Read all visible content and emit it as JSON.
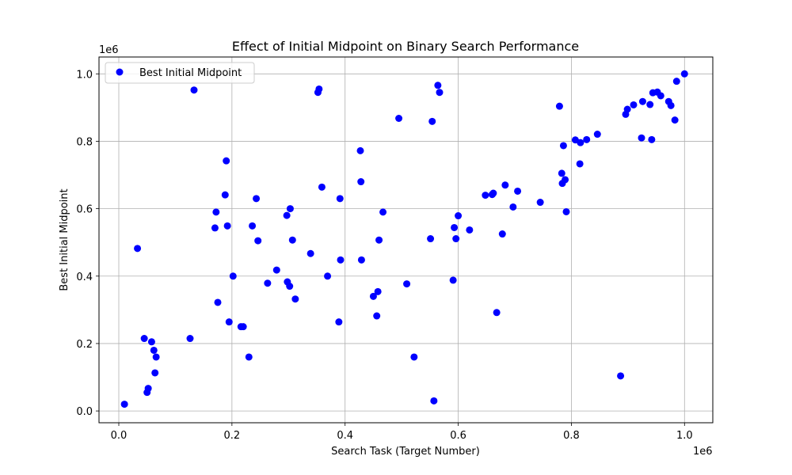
{
  "chart_data": {
    "type": "scatter",
    "title": "Effect of Initial Midpoint on Binary Search Performance",
    "xlabel": "Search Task (Target Number)",
    "ylabel": "Best Initial Midpoint",
    "x_scale_label": "1e6",
    "y_scale_label": "1e6",
    "xlim": [
      -35000,
      1050000
    ],
    "ylim": [
      -35000,
      1050000
    ],
    "x_ticks": [
      0,
      200000,
      400000,
      600000,
      800000,
      1000000
    ],
    "x_tick_labels": [
      "0.0",
      "0.2",
      "0.4",
      "0.6",
      "0.8",
      "1.0"
    ],
    "y_ticks": [
      0,
      200000,
      400000,
      600000,
      800000,
      1000000
    ],
    "y_tick_labels": [
      "0.0",
      "0.2",
      "0.4",
      "0.6",
      "0.8",
      "1.0"
    ],
    "grid": true,
    "legend_position": "top-left",
    "color": "#0000ff",
    "series": [
      {
        "name": "Best Initial Midpoint",
        "x": [
          10000,
          33000,
          45000,
          50000,
          52000,
          58000,
          62000,
          64000,
          66000,
          126000,
          133000,
          170000,
          172000,
          175000,
          188000,
          190000,
          192000,
          195000,
          202000,
          216000,
          220000,
          230000,
          236000,
          243000,
          246000,
          263000,
          279000,
          297000,
          298000,
          302000,
          303000,
          307000,
          312000,
          339000,
          352000,
          354000,
          359000,
          369000,
          389000,
          391000,
          392000,
          427000,
          428000,
          429000,
          450000,
          456000,
          458000,
          460000,
          467000,
          495000,
          509000,
          522000,
          551000,
          554000,
          557000,
          564000,
          567000,
          591000,
          593000,
          596000,
          600000,
          620000,
          648000,
          660000,
          662000,
          668000,
          678000,
          683000,
          697000,
          705000,
          745000,
          779000,
          783000,
          784000,
          786000,
          789000,
          791000,
          807000,
          815000,
          816000,
          827000,
          846000,
          887000,
          896000,
          899000,
          910000,
          924000,
          926000,
          939000,
          942000,
          944000,
          952000,
          958000,
          972000,
          976000,
          983000,
          986000,
          1000000
        ],
        "y": [
          20000,
          482000,
          215000,
          55000,
          67000,
          205000,
          180000,
          113000,
          160000,
          215000,
          952000,
          543000,
          590000,
          322000,
          641000,
          742000,
          549000,
          264000,
          400000,
          250000,
          250000,
          160000,
          549000,
          630000,
          505000,
          379000,
          418000,
          580000,
          383000,
          370000,
          600000,
          507000,
          332000,
          467000,
          945000,
          955000,
          664000,
          400000,
          264000,
          630000,
          448000,
          772000,
          680000,
          448000,
          340000,
          282000,
          354000,
          507000,
          590000,
          868000,
          377000,
          160000,
          511000,
          859000,
          30000,
          966000,
          945000,
          388000,
          544000,
          511000,
          579000,
          537000,
          640000,
          642000,
          646000,
          292000,
          525000,
          670000,
          605000,
          652000,
          619000,
          904000,
          705000,
          675000,
          787000,
          686000,
          591000,
          804000,
          733000,
          796000,
          805000,
          821000,
          104000,
          880000,
          895000,
          908000,
          810000,
          918000,
          909000,
          805000,
          944000,
          946000,
          935000,
          918000,
          906000,
          863000,
          978000,
          1000000
        ]
      }
    ]
  }
}
